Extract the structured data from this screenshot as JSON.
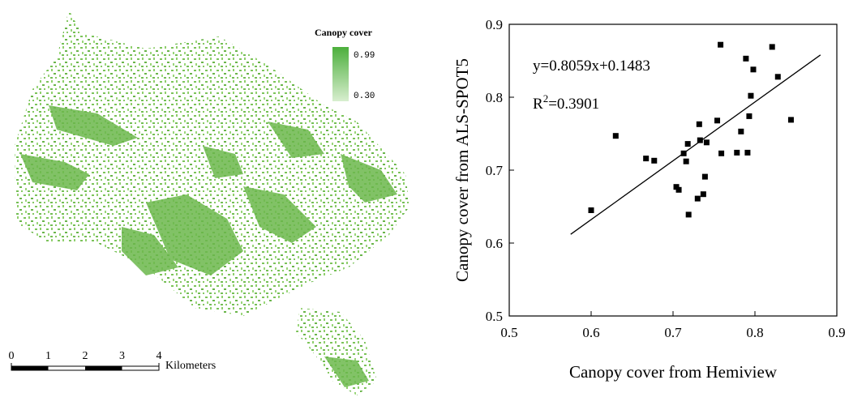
{
  "map": {
    "legend_title": "Canopy cover",
    "legend_high": "0.99",
    "legend_low": "0.30",
    "scale_labels": [
      "0",
      "1",
      "2",
      "3",
      "4"
    ],
    "scale_unit": "Kilometers"
  },
  "chart_data": {
    "type": "scatter",
    "x_label": "Canopy cover from Hemiview",
    "y_label": "Canopy cover from ALS-SPOT5",
    "equation": "y=0.8059x+0.1483",
    "r_squared": {
      "base": "R",
      "sup": "2",
      "rest": "=0.3901"
    },
    "xlim": [
      0.5,
      0.9
    ],
    "ylim": [
      0.5,
      0.9
    ],
    "xticks": [
      0.5,
      0.6,
      0.7,
      0.8,
      0.9
    ],
    "yticks": [
      0.5,
      0.6,
      0.7,
      0.8,
      0.9
    ],
    "color": "#000000",
    "x": [
      0.6,
      0.63,
      0.667,
      0.677,
      0.713,
      0.716,
      0.718,
      0.704,
      0.707,
      0.719,
      0.73,
      0.737,
      0.739,
      0.732,
      0.733,
      0.741,
      0.754,
      0.758,
      0.759,
      0.778,
      0.783,
      0.789,
      0.791,
      0.793,
      0.795,
      0.798,
      0.821,
      0.828,
      0.844
    ],
    "values": [
      0.645,
      0.747,
      0.716,
      0.713,
      0.723,
      0.712,
      0.736,
      0.677,
      0.673,
      0.639,
      0.661,
      0.667,
      0.691,
      0.763,
      0.741,
      0.738,
      0.768,
      0.872,
      0.723,
      0.724,
      0.753,
      0.853,
      0.724,
      0.774,
      0.802,
      0.838,
      0.869,
      0.828,
      0.769
    ],
    "fit": {
      "x": [
        0.575,
        0.88
      ],
      "values": [
        0.612,
        0.858
      ]
    }
  }
}
